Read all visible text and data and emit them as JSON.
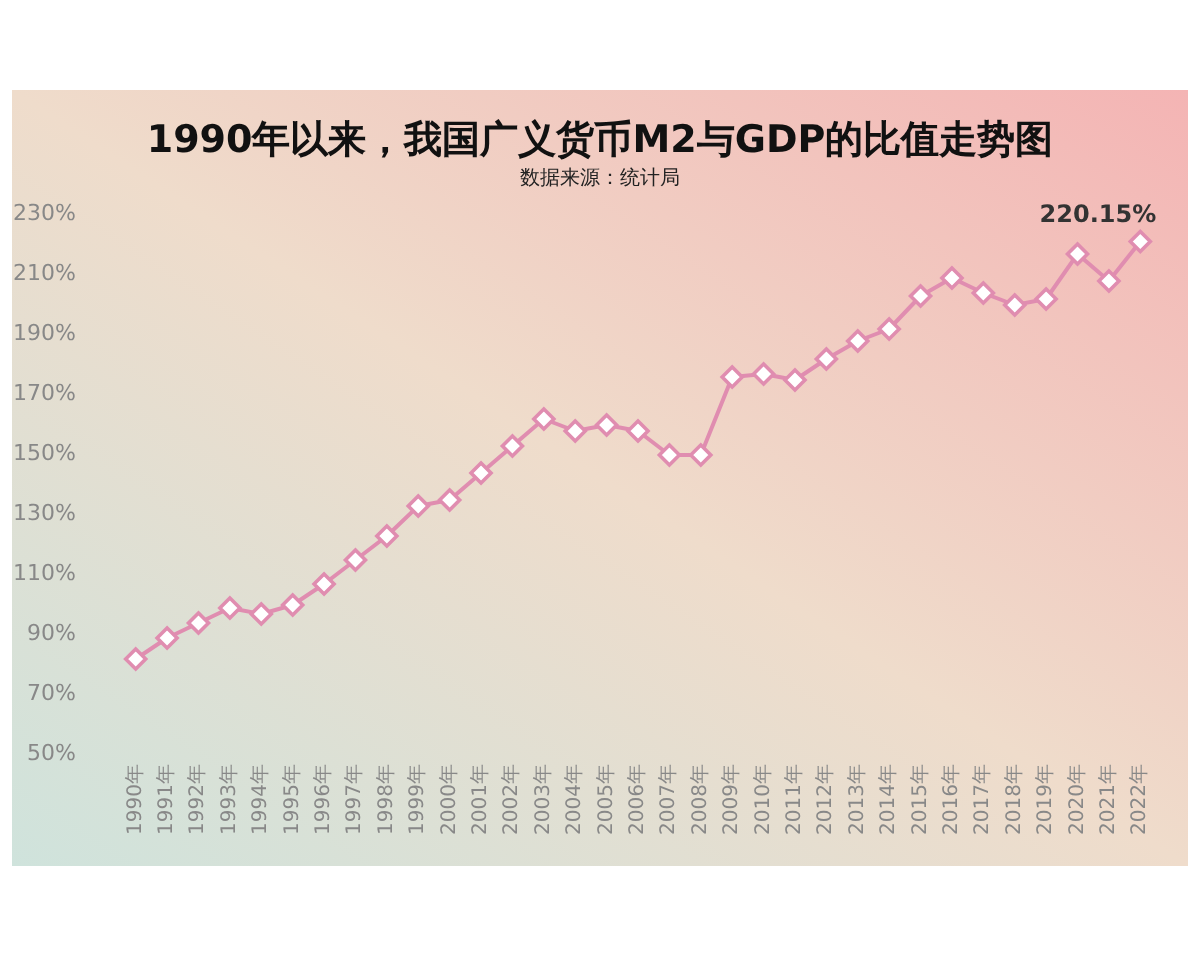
{
  "chart_data": {
    "type": "line",
    "title": "1990年以来，我国广义货币M2与GDP的比值走势图",
    "subtitle": "数据来源：统计局",
    "categories": [
      "1990年",
      "1991年",
      "1992年",
      "1993年",
      "1994年",
      "1995年",
      "1996年",
      "1997年",
      "1998年",
      "1999年",
      "2000年",
      "2001年",
      "2002年",
      "2003年",
      "2004年",
      "2005年",
      "2006年",
      "2007年",
      "2008年",
      "2009年",
      "2010年",
      "2011年",
      "2012年",
      "2013年",
      "2014年",
      "2015年",
      "2016年",
      "2017年",
      "2018年",
      "2019年",
      "2020年",
      "2021年",
      "2022年"
    ],
    "values": [
      81,
      88,
      93,
      98,
      96,
      99,
      106,
      114,
      122,
      132,
      134,
      143,
      152,
      161,
      157,
      159,
      157,
      149,
      149,
      175,
      176,
      174,
      181,
      187,
      191,
      202,
      208,
      203,
      199,
      201,
      216,
      207,
      220.15
    ],
    "value_labels": [
      null,
      null,
      null,
      null,
      null,
      null,
      null,
      null,
      null,
      null,
      null,
      null,
      null,
      null,
      null,
      null,
      null,
      null,
      null,
      null,
      null,
      null,
      null,
      null,
      null,
      null,
      null,
      null,
      null,
      null,
      null,
      null,
      "220.15%"
    ],
    "color": "#e08db0",
    "marker": "diamond",
    "ylim": [
      50,
      230
    ],
    "yticks": [
      {
        "value": 50,
        "label": "50%"
      },
      {
        "value": 70,
        "label": "70%"
      },
      {
        "value": 90,
        "label": "90%"
      },
      {
        "value": 110,
        "label": "110%"
      },
      {
        "value": 130,
        "label": "130%"
      },
      {
        "value": 150,
        "label": "150%"
      },
      {
        "value": 170,
        "label": "170%"
      },
      {
        "value": 190,
        "label": "190%"
      },
      {
        "value": 210,
        "label": "210%"
      },
      {
        "value": 230,
        "label": "230%"
      }
    ]
  }
}
